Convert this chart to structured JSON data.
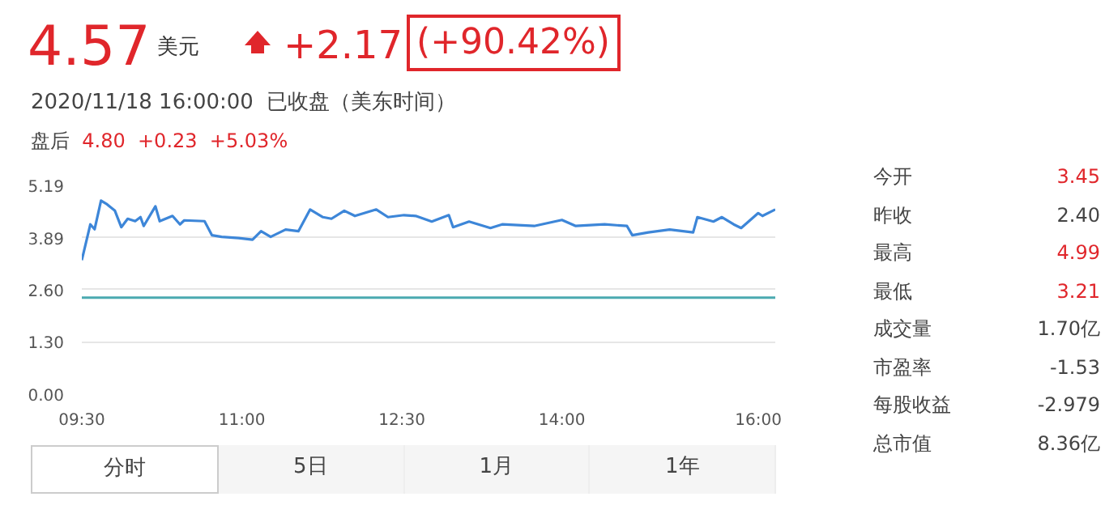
{
  "chart_data": {
    "type": "line",
    "x": [
      9.5,
      9.58,
      9.62,
      9.68,
      9.73,
      9.81,
      9.87,
      9.93,
      10.0,
      10.05,
      10.08,
      10.19,
      10.23,
      10.35,
      10.42,
      10.46,
      10.65,
      10.72,
      10.81,
      10.97,
      11.1,
      11.18,
      11.27,
      11.41,
      11.53,
      11.64,
      11.76,
      11.84,
      11.96,
      12.06,
      12.26,
      12.37,
      12.52,
      12.63,
      12.78,
      12.94,
      12.98,
      13.13,
      13.33,
      13.44,
      13.74,
      14.0,
      14.13,
      14.4,
      14.61,
      14.66,
      14.81,
      15.01,
      15.23,
      15.27,
      15.42,
      15.5,
      15.61,
      15.68,
      15.84,
      15.88,
      16.0
    ],
    "series": [
      {
        "color": "#3d86d8",
        "values": [
          3.33,
          4.22,
          4.1,
          4.81,
          4.73,
          4.56,
          4.15,
          4.36,
          4.3,
          4.4,
          4.18,
          4.67,
          4.3,
          4.43,
          4.22,
          4.32,
          4.3,
          3.95,
          3.91,
          3.88,
          3.84,
          4.05,
          3.91,
          4.09,
          4.05,
          4.59,
          4.4,
          4.36,
          4.56,
          4.43,
          4.59,
          4.4,
          4.45,
          4.43,
          4.29,
          4.45,
          4.15,
          4.29,
          4.13,
          4.22,
          4.18,
          4.33,
          4.18,
          4.22,
          4.18,
          3.95,
          4.02,
          4.09,
          4.02,
          4.4,
          4.29,
          4.4,
          4.22,
          4.13,
          4.5,
          4.43,
          4.59
        ]
      }
    ],
    "xlim": [
      9.5,
      16
    ],
    "xticks": [
      {
        "value": 9.5,
        "label": "09:30"
      },
      {
        "value": 11,
        "label": "11:00"
      },
      {
        "value": 12.5,
        "label": "12:30"
      },
      {
        "value": 14,
        "label": "14:00"
      },
      {
        "value": 16,
        "label": "16:00"
      }
    ],
    "ylim": [
      0,
      5.19
    ],
    "yticks": [
      {
        "value": 0,
        "label": "0.00"
      },
      {
        "value": 1.3,
        "label": "1.30"
      },
      {
        "value": 2.6,
        "label": "2.60"
      },
      {
        "value": 3.89,
        "label": "3.89"
      },
      {
        "value": 5.19,
        "label": "5.19"
      }
    ],
    "grid": "y",
    "marker": "none",
    "line_style": "solid",
    "ref_lines": [
      {
        "axis": "y",
        "value": 2.4,
        "color": "#4aaab0"
      }
    ],
    "annotations": [
      "4.57",
      "美元",
      "+2.17",
      "(+90.42%)",
      "2020/11/18 16:00:00",
      "已收盘（美东时间）",
      "盘后",
      "4.80",
      "+0.23",
      "+5.03%",
      "今开",
      "3.45",
      "昨收",
      "2.40",
      "最高",
      "4.99",
      "最低",
      "3.21",
      "成交量",
      "1.70亿",
      "市盈率",
      "-1.53",
      "每股收益",
      "-2.979",
      "总市值",
      "8.36亿",
      "分时",
      "5日",
      "1月",
      "1年"
    ]
  }
}
